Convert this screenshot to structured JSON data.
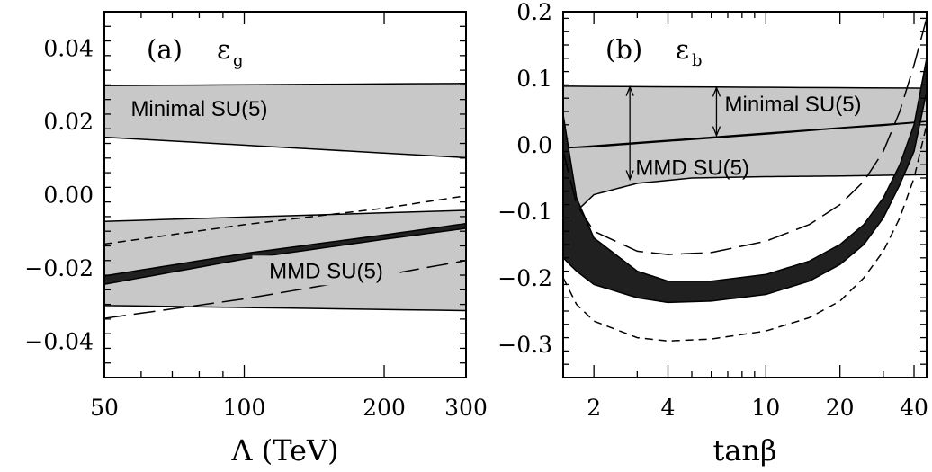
{
  "chart_data": [
    {
      "panel": "a",
      "type": "area",
      "label": "(a)",
      "symbol": "ε",
      "subscript": "g",
      "xlabel": "Λ (TeV)",
      "xscale": "log",
      "xlim": [
        50,
        300
      ],
      "ylim": [
        -0.05,
        0.05
      ],
      "x_ticks": [
        50,
        100,
        200,
        300
      ],
      "x_tick_labels": [
        "50",
        "100",
        "200",
        "300"
      ],
      "y_ticks": [
        -0.04,
        -0.02,
        0.0,
        0.02,
        0.04
      ],
      "y_tick_labels": [
        "−0.04",
        "−0.02",
        "0.00",
        "0.02",
        "0.04"
      ],
      "bands": [
        {
          "name": "Minimal SU(5)",
          "fill": "#c8c8c8",
          "x": [
            50,
            300
          ],
          "upper": [
            0.0298,
            0.0304
          ],
          "lower": [
            0.0157,
            0.0101
          ]
        },
        {
          "name": "MMD SU(5)",
          "fill": "#c8c8c8",
          "x": [
            50,
            300
          ],
          "upper": [
            -0.0073,
            -0.0043
          ],
          "lower": [
            -0.0303,
            -0.0317
          ]
        },
        {
          "name": "",
          "fill": "#202020",
          "x": [
            50,
            100,
            200,
            300
          ],
          "upper": [
            -0.0222,
            -0.0161,
            -0.011,
            -0.0079
          ],
          "lower": [
            -0.0245,
            -0.0176,
            -0.0122,
            -0.0092
          ]
        }
      ],
      "lines": [
        {
          "style": "short-dash",
          "x": [
            50,
            100,
            200,
            300
          ],
          "y": [
            -0.0135,
            -0.0082,
            -0.0037,
            -0.0003
          ]
        },
        {
          "style": "long-dash",
          "x": [
            50,
            100,
            200,
            300
          ],
          "y": [
            -0.0338,
            -0.0285,
            -0.022,
            -0.018
          ]
        }
      ],
      "annotations": [
        {
          "text": "Minimal SU(5)",
          "x": 80,
          "y": 0.0215
        },
        {
          "text": "MMD SU(5)",
          "x": 150,
          "y": -0.0228
        }
      ]
    },
    {
      "panel": "b",
      "type": "area",
      "label": "(b)",
      "symbol": "ε",
      "subscript": "b",
      "xlabel": "tanβ",
      "xscale": "log",
      "xlim": [
        1.5,
        45
      ],
      "ylim": [
        -0.35,
        0.2
      ],
      "x_ticks": [
        2,
        4,
        10,
        20,
        40
      ],
      "x_tick_labels": [
        "2",
        "4",
        "10",
        "20",
        "40"
      ],
      "y_ticks": [
        -0.3,
        -0.2,
        -0.1,
        0.0,
        0.1,
        0.2
      ],
      "y_tick_labels": [
        "−0.3",
        "−0.2",
        "−0.1",
        "0.0",
        "0.1",
        "0.2"
      ],
      "bands": [
        {
          "name": "Minimal SU(5)",
          "fill": "#c8c8c8",
          "x": [
            1.5,
            45
          ],
          "upper": [
            0.088,
            0.085
          ],
          "lower": [
            -0.005,
            0.035
          ]
        },
        {
          "name": "MMD SU(5)",
          "fill": "#c8c8c8",
          "x": [
            1.5,
            1.7,
            2.0,
            3.0,
            5.0,
            10,
            20,
            30,
            45
          ],
          "upper": [
            -0.005,
            -0.004,
            -0.003,
            0.002,
            0.008,
            0.016,
            0.025,
            0.029,
            0.035
          ],
          "lower": [
            -0.165,
            -0.1,
            -0.075,
            -0.058,
            -0.05,
            -0.048,
            -0.047,
            -0.046,
            -0.045
          ]
        }
      ],
      "dark_band": {
        "name": "",
        "fill": "#202020",
        "x_upper": [
          1.5,
          1.7,
          2.0,
          3.0,
          4.0,
          6.0,
          10,
          15,
          20,
          25,
          30,
          35,
          40,
          45
        ],
        "upper": [
          0.045,
          -0.08,
          -0.14,
          -0.19,
          -0.205,
          -0.205,
          -0.195,
          -0.175,
          -0.15,
          -0.12,
          -0.08,
          -0.03,
          0.03,
          0.13
        ],
        "x_lower": [
          1.5,
          1.7,
          2.0,
          3.0,
          4.0,
          6.0,
          10,
          15,
          20,
          25,
          30,
          35,
          40,
          45
        ],
        "lower": [
          -0.17,
          -0.19,
          -0.21,
          -0.23,
          -0.237,
          -0.235,
          -0.225,
          -0.205,
          -0.18,
          -0.15,
          -0.11,
          -0.06,
          -0.01,
          0.08
        ]
      },
      "lines": [
        {
          "style": "long-dash",
          "x": [
            1.5,
            1.7,
            2.0,
            3.0,
            4.0,
            6.0,
            10,
            15,
            20,
            25,
            30,
            35,
            40,
            45
          ],
          "y": [
            -0.01,
            -0.09,
            -0.13,
            -0.16,
            -0.165,
            -0.162,
            -0.145,
            -0.12,
            -0.09,
            -0.055,
            -0.01,
            0.05,
            0.12,
            0.19
          ]
        },
        {
          "style": "short-dash",
          "x": [
            1.5,
            1.7,
            2.0,
            3.0,
            4.0,
            6.0,
            10,
            15,
            20,
            25,
            30,
            35,
            40,
            45
          ],
          "y": [
            -0.2,
            -0.24,
            -0.265,
            -0.29,
            -0.295,
            -0.292,
            -0.28,
            -0.26,
            -0.235,
            -0.2,
            -0.16,
            -0.11,
            -0.05,
            0.03
          ]
        }
      ],
      "arrows": [
        {
          "x": 2.8,
          "from": -0.052,
          "to": 0.087
        },
        {
          "x": 6.3,
          "from": 0.014,
          "to": 0.086
        }
      ],
      "annotations": [
        {
          "text": "Minimal SU(5)",
          "x": 6.8,
          "y": 0.05
        },
        {
          "text": "MMD SU(5)",
          "x": 2.95,
          "y": -0.045
        }
      ]
    }
  ]
}
